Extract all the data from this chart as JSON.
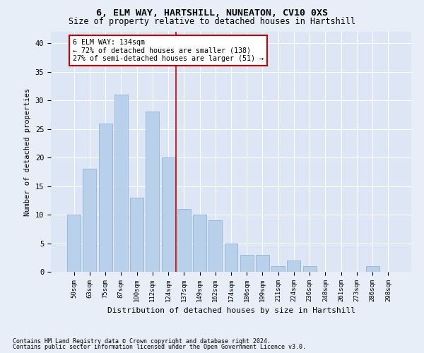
{
  "title1": "6, ELM WAY, HARTSHILL, NUNEATON, CV10 0XS",
  "title2": "Size of property relative to detached houses in Hartshill",
  "xlabel": "Distribution of detached houses by size in Hartshill",
  "ylabel": "Number of detached properties",
  "categories": [
    "50sqm",
    "63sqm",
    "75sqm",
    "87sqm",
    "100sqm",
    "112sqm",
    "124sqm",
    "137sqm",
    "149sqm",
    "162sqm",
    "174sqm",
    "186sqm",
    "199sqm",
    "211sqm",
    "224sqm",
    "236sqm",
    "248sqm",
    "261sqm",
    "273sqm",
    "286sqm",
    "298sqm"
  ],
  "values": [
    10,
    18,
    26,
    31,
    13,
    28,
    20,
    11,
    10,
    9,
    5,
    3,
    3,
    1,
    2,
    1,
    0,
    0,
    0,
    1,
    0
  ],
  "bar_color": "#b8d0ea",
  "bar_edge_color": "#90b4d8",
  "vline_x_index": 6.5,
  "vline_color": "#cc0000",
  "annotation_title": "6 ELM WAY: 134sqm",
  "annotation_line1": "← 72% of detached houses are smaller (138)",
  "annotation_line2": "27% of semi-detached houses are larger (51) →",
  "annotation_box_color": "#cc0000",
  "ylim": [
    0,
    42
  ],
  "yticks": [
    0,
    5,
    10,
    15,
    20,
    25,
    30,
    35,
    40
  ],
  "footnote1": "Contains HM Land Registry data © Crown copyright and database right 2024.",
  "footnote2": "Contains public sector information licensed under the Open Government Licence v3.0.",
  "fig_bg_color": "#e8eef8",
  "plot_bg_color": "#dce6f5"
}
